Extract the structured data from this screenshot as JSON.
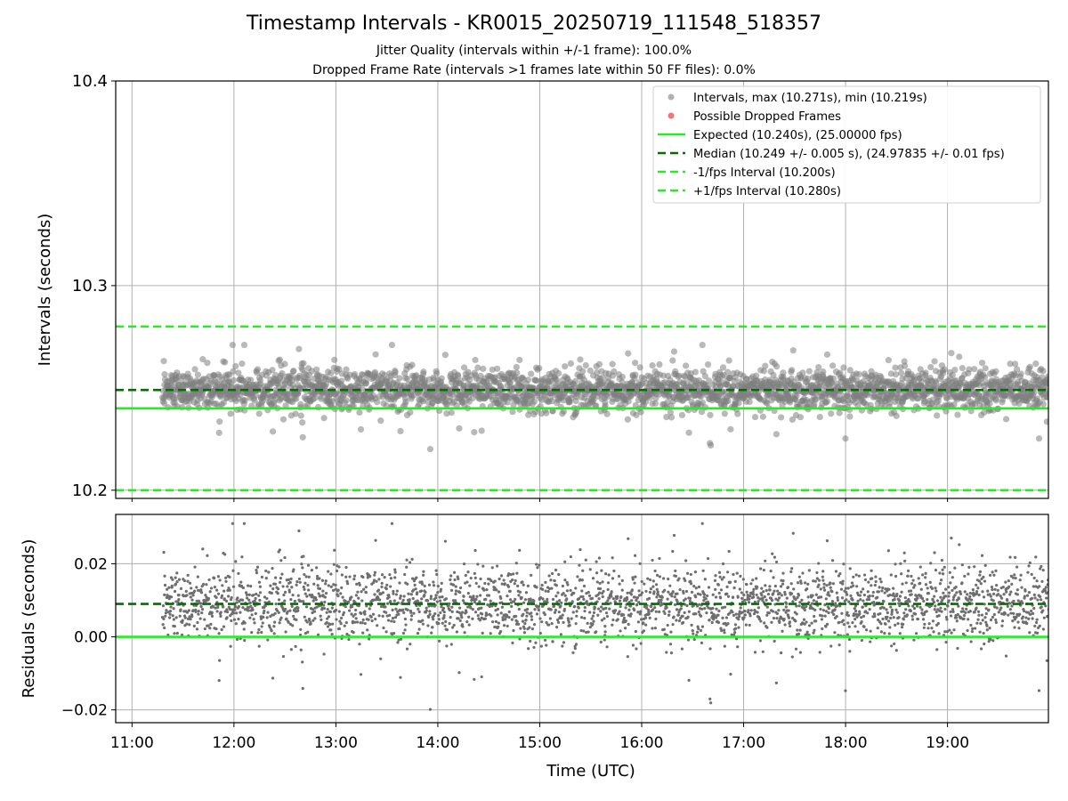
{
  "chart_data": [
    {
      "type": "scatter",
      "title": "Timestamp Intervals - KR0015_20250719_111548_518357",
      "subtitle_lines": [
        "Jitter Quality (intervals within +/-1 frame): 100.0%",
        "Dropped Frame Rate (intervals >1 frames late within 50 FF files): 0.0%"
      ],
      "ylabel": "Intervals (seconds)",
      "xlabel": "",
      "xlim_hours": [
        10.84,
        19.99
      ],
      "ylim": [
        10.196,
        10.4
      ],
      "yticks": [
        10.2,
        10.3,
        10.4
      ],
      "ytick_labels": [
        "10.2",
        "10.3",
        "10.4"
      ],
      "grid": true,
      "legend_placement": "upper right",
      "legend": [
        {
          "label": "Intervals, max (10.271s), min (10.219s)",
          "kind": "marker",
          "color": "#a9a9a9"
        },
        {
          "label": "Possible Dropped Frames",
          "kind": "marker",
          "color": "#f07070"
        },
        {
          "label": "Expected (10.240s), (25.00000 fps)",
          "kind": "solid",
          "color": "#22ee22"
        },
        {
          "label": "Median (10.249 +/- 0.005 s), (24.97835 +/- 0.01 fps)",
          "kind": "dashed",
          "color": "#007000"
        },
        {
          "label": "-1/fps Interval (10.200s)",
          "kind": "dashed",
          "color": "#22ee22"
        },
        {
          "label": "+1/fps Interval (10.280s)",
          "kind": "dashed",
          "color": "#22ee22"
        }
      ],
      "reference_lines": {
        "expected": 10.24,
        "median": 10.249,
        "minus_one_fps": 10.2,
        "plus_one_fps": 10.28
      },
      "series": [
        {
          "name": "Intervals, max (10.271s), min (10.219s)",
          "x_start_hours": 11.3,
          "x_end_hours": 20.0,
          "y_max": 10.271,
          "y_min": 10.219,
          "y_median": 10.249,
          "y_std": 0.005,
          "n_points_approx": 2800,
          "note_style": "dense band of semi-transparent gray points"
        },
        {
          "name": "Possible Dropped Frames",
          "values": []
        }
      ]
    },
    {
      "type": "scatter",
      "title": "",
      "ylabel": "Residuals (seconds)",
      "xlabel": "Time (UTC)",
      "xlim_hours": [
        10.84,
        19.99
      ],
      "ylim": [
        -0.0235,
        0.0335
      ],
      "yticks": [
        -0.02,
        0.0,
        0.02
      ],
      "ytick_labels": [
        "−0.02",
        "0.00",
        "0.02"
      ],
      "xticks_hours": [
        11,
        12,
        13,
        14,
        15,
        16,
        17,
        18,
        19
      ],
      "xtick_labels": [
        "11:00",
        "12:00",
        "13:00",
        "14:00",
        "15:00",
        "16:00",
        "17:00",
        "18:00",
        "19:00"
      ],
      "grid": true,
      "reference_lines": {
        "zero": 0.0,
        "median_residual": 0.009
      },
      "series": [
        {
          "name": "Residuals",
          "x_start_hours": 11.3,
          "x_end_hours": 20.0,
          "y_max": 0.031,
          "y_min": -0.021,
          "y_median": 0.009,
          "y_std": 0.005,
          "n_points_approx": 2800
        }
      ]
    }
  ],
  "colors": {
    "points": "#808080",
    "expected": "#22ee22",
    "median": "#007000",
    "grid": "#b0b0b0",
    "axes": "#000000"
  }
}
